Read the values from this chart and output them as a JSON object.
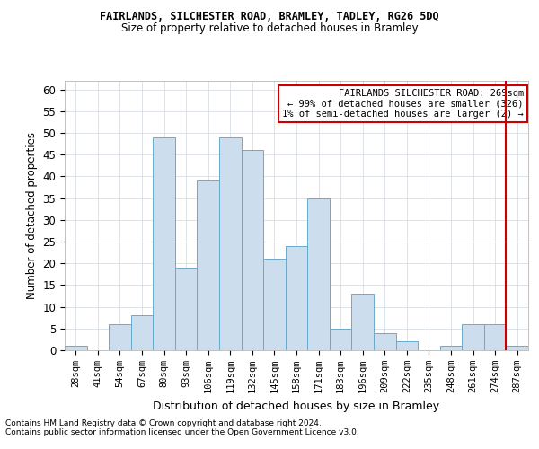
{
  "title1": "FAIRLANDS, SILCHESTER ROAD, BRAMLEY, TADLEY, RG26 5DQ",
  "title2": "Size of property relative to detached houses in Bramley",
  "xlabel": "Distribution of detached houses by size in Bramley",
  "ylabel": "Number of detached properties",
  "categories": [
    "28sqm",
    "41sqm",
    "54sqm",
    "67sqm",
    "80sqm",
    "93sqm",
    "106sqm",
    "119sqm",
    "132sqm",
    "145sqm",
    "158sqm",
    "171sqm",
    "183sqm",
    "196sqm",
    "209sqm",
    "222sqm",
    "235sqm",
    "248sqm",
    "261sqm",
    "274sqm",
    "287sqm"
  ],
  "values": [
    1,
    0,
    6,
    8,
    49,
    19,
    39,
    49,
    46,
    21,
    24,
    35,
    5,
    13,
    4,
    2,
    0,
    1,
    6,
    6,
    1
  ],
  "bar_color": "#ccdded",
  "bar_edge_color": "#6aaacb",
  "grid_color": "#d0d8e0",
  "background_color": "#ffffff",
  "vline_x": 19.5,
  "vline_color": "#cc0000",
  "annotation_title": "FAIRLANDS SILCHESTER ROAD: 269sqm",
  "annotation_line2": "← 99% of detached houses are smaller (326)",
  "annotation_line3": "1% of semi-detached houses are larger (2) →",
  "annotation_box_color": "#cc0000",
  "ylim": [
    0,
    62
  ],
  "yticks": [
    0,
    5,
    10,
    15,
    20,
    25,
    30,
    35,
    40,
    45,
    50,
    55,
    60
  ],
  "footnote1": "Contains HM Land Registry data © Crown copyright and database right 2024.",
  "footnote2": "Contains public sector information licensed under the Open Government Licence v3.0."
}
